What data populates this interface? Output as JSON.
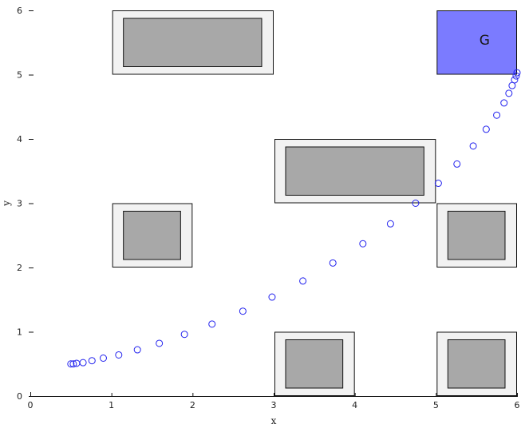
{
  "chart_data": {
    "type": "scatter",
    "xlabel": "x",
    "ylabel": "y",
    "xlim": [
      0,
      6
    ],
    "ylim": [
      0,
      6
    ],
    "x_ticks": [
      "0",
      "1",
      "2",
      "3",
      "4",
      "5",
      "6"
    ],
    "y_ticks": [
      "0",
      "1",
      "2",
      "3",
      "4",
      "5",
      "6"
    ],
    "grid": false,
    "legend": "none",
    "goal": {
      "label": "G",
      "x0": 5,
      "x1": 6,
      "y0": 5,
      "y1": 6,
      "color": "#7b7bff"
    },
    "obstacles": [
      {
        "x0": 1,
        "x1": 3,
        "y0": 5,
        "y1": 6
      },
      {
        "x0": 3,
        "x1": 5,
        "y0": 3,
        "y1": 4
      },
      {
        "x0": 1,
        "x1": 2,
        "y0": 2,
        "y1": 3
      },
      {
        "x0": 5,
        "x1": 6,
        "y0": 2,
        "y1": 3
      },
      {
        "x0": 3,
        "x1": 4,
        "y0": 0,
        "y1": 1
      },
      {
        "x0": 5,
        "x1": 6,
        "y0": 0,
        "y1": 1
      }
    ],
    "obstacle_outer_color": "#f2f2f2",
    "obstacle_inner_color": "#a8a8a8",
    "marker_color": "#2222ee",
    "series": [
      {
        "x": [
          0.5,
          0.53,
          0.57,
          0.65,
          0.76,
          0.9,
          1.09,
          1.32,
          1.59,
          1.9,
          2.24,
          2.62,
          2.98,
          3.36,
          3.73,
          4.1,
          4.44,
          4.75,
          5.03,
          5.26,
          5.46,
          5.62,
          5.75,
          5.84,
          5.9,
          5.94,
          5.97,
          5.99,
          6.0
        ],
        "y": [
          0.5,
          0.5,
          0.51,
          0.52,
          0.55,
          0.59,
          0.64,
          0.72,
          0.82,
          0.96,
          1.12,
          1.32,
          1.54,
          1.79,
          2.07,
          2.37,
          2.68,
          3.0,
          3.31,
          3.61,
          3.89,
          4.15,
          4.37,
          4.56,
          4.71,
          4.83,
          4.92,
          4.98,
          5.03
        ]
      }
    ]
  }
}
